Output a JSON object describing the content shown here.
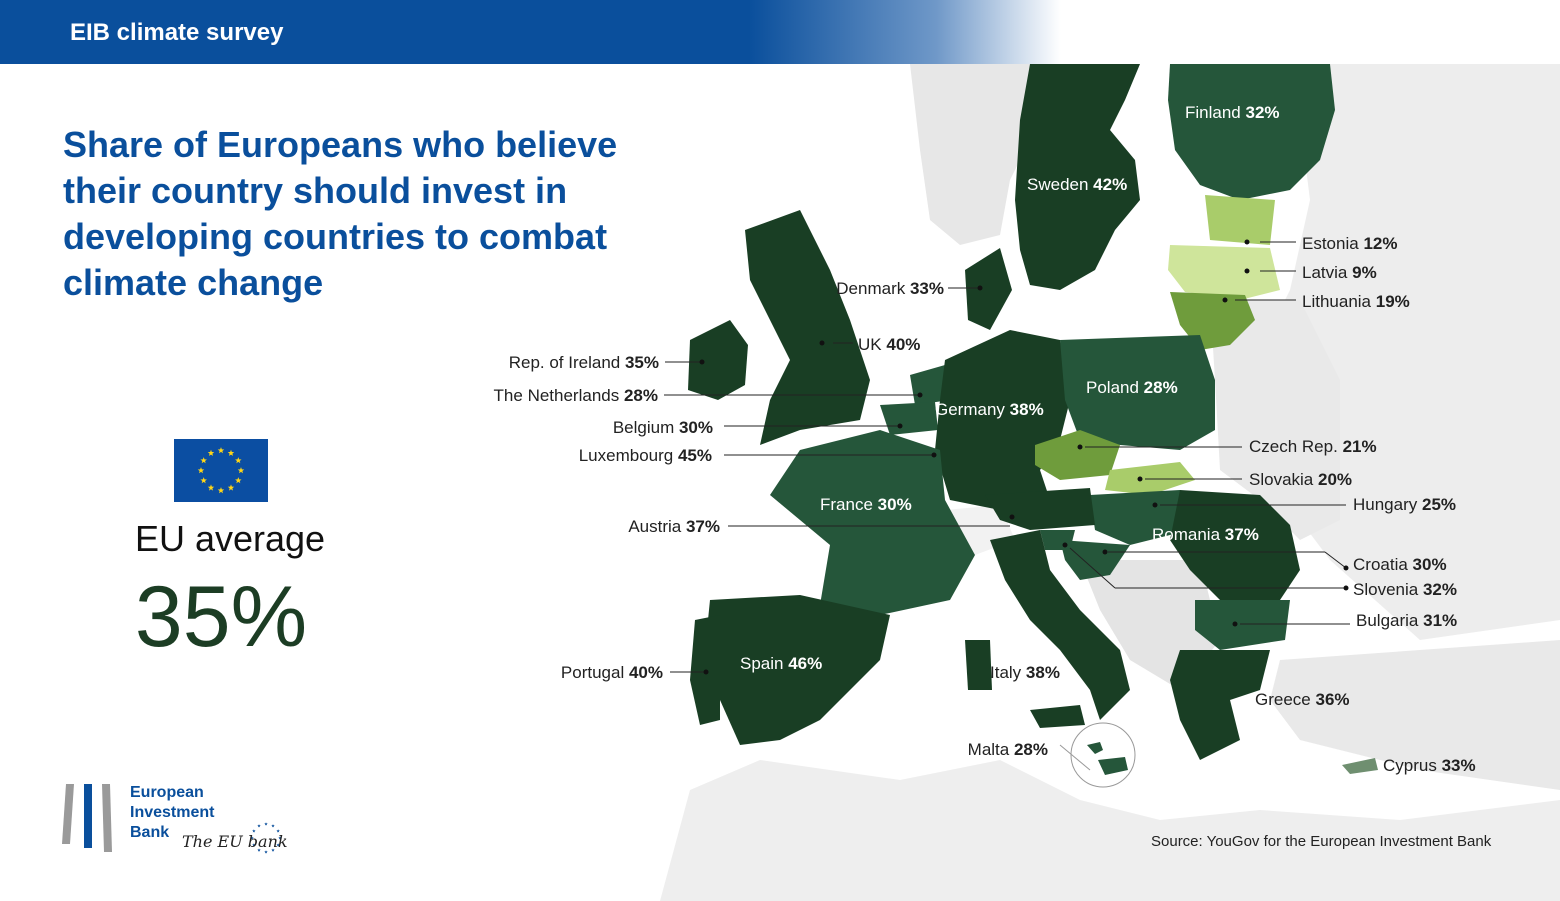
{
  "header": {
    "title": "EIB climate survey"
  },
  "main": {
    "title": "Share of Europeans who believe their country should invest in developing countries to combat climate change",
    "eu_average_label": "EU average",
    "eu_average_value": "35%"
  },
  "logo": {
    "line1": "European",
    "line2": "Investment",
    "line3": "Bank",
    "tagline": "The EU bank"
  },
  "source": "Source: YouGov for the European Investment Bank",
  "colors": {
    "brand_blue": "#0a4f9c",
    "flag_blue": "#0b4ea2",
    "flag_star": "#ffd617",
    "shade_dark": "#193e24",
    "shade_mid": "#25563a",
    "shade_green": "#6f9c3c",
    "shade_light": "#a9cc6a",
    "shade_pale": "#cfe59b",
    "land_grey": "#e7e7e7"
  },
  "countries": {
    "finland": {
      "name": "Finland",
      "value": "32%"
    },
    "sweden": {
      "name": "Sweden",
      "value": "42%"
    },
    "estonia": {
      "name": "Estonia",
      "value": "12%"
    },
    "latvia": {
      "name": "Latvia",
      "value": "9%"
    },
    "lithuania": {
      "name": "Lithuania",
      "value": "19%"
    },
    "denmark": {
      "name": "Denmark",
      "value": "33%"
    },
    "uk": {
      "name": "UK",
      "value": "40%"
    },
    "ireland": {
      "name": "Rep. of Ireland",
      "value": "35%"
    },
    "netherlands": {
      "name": "The Netherlands",
      "value": "28%"
    },
    "belgium": {
      "name": "Belgium",
      "value": "30%"
    },
    "luxembourg": {
      "name": "Luxembourg",
      "value": "45%"
    },
    "poland": {
      "name": "Poland",
      "value": "28%"
    },
    "germany": {
      "name": "Germany",
      "value": "38%"
    },
    "czech": {
      "name": "Czech Rep.",
      "value": "21%"
    },
    "slovakia": {
      "name": "Slovakia",
      "value": "20%"
    },
    "hungary": {
      "name": "Hungary",
      "value": "25%"
    },
    "france": {
      "name": "France",
      "value": "30%"
    },
    "austria": {
      "name": "Austria",
      "value": "37%"
    },
    "romania": {
      "name": "Romania",
      "value": "37%"
    },
    "croatia": {
      "name": "Croatia",
      "value": "30%"
    },
    "slovenia": {
      "name": "Slovenia",
      "value": "32%"
    },
    "bulgaria": {
      "name": "Bulgaria",
      "value": "31%"
    },
    "spain": {
      "name": "Spain",
      "value": "46%"
    },
    "portugal": {
      "name": "Portugal",
      "value": "40%"
    },
    "italy": {
      "name": "Italy",
      "value": "38%"
    },
    "greece": {
      "name": "Greece",
      "value": "36%"
    },
    "malta": {
      "name": "Malta",
      "value": "28%"
    },
    "cyprus": {
      "name": "Cyprus",
      "value": "33%"
    }
  }
}
